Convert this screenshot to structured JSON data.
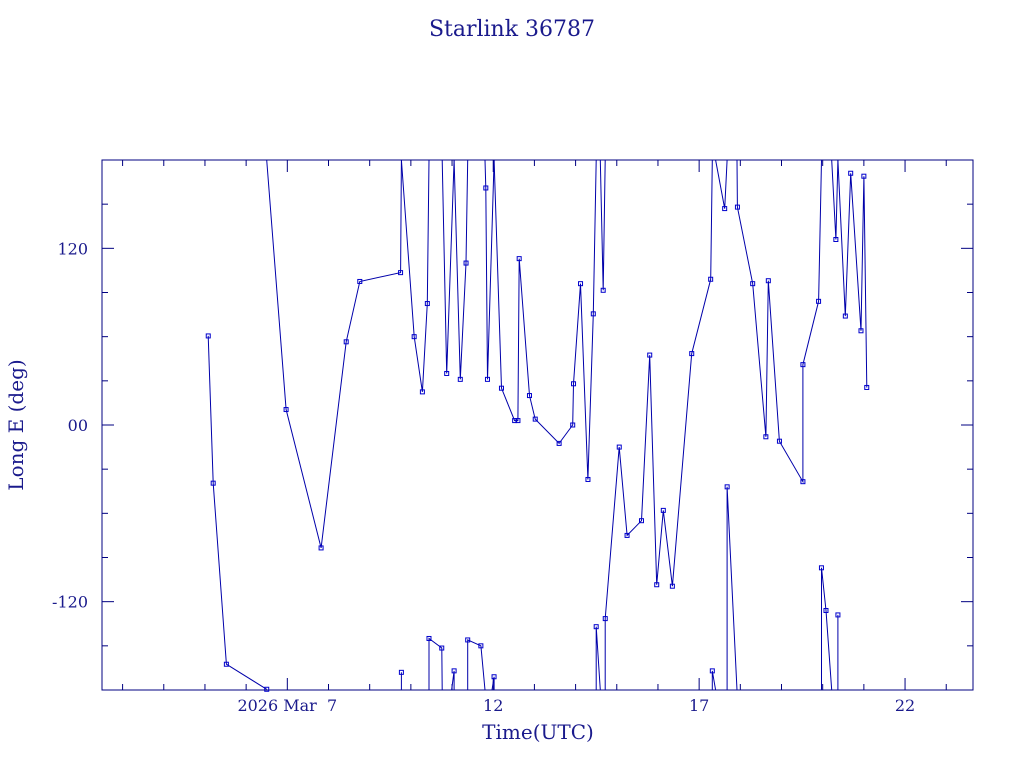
{
  "chart_data": {
    "type": "line",
    "title": "Starlink 36787",
    "xlabel": "Time(UTC)",
    "ylabel": "Long E (deg)",
    "xlim": [
      2.5,
      23.65
    ],
    "ylim": [
      -180,
      180
    ],
    "x_ticks": [
      {
        "value": 7,
        "label": "2026 Mar  7"
      },
      {
        "value": 12,
        "label": "12"
      },
      {
        "value": 17,
        "label": "17"
      },
      {
        "value": 22,
        "label": "22"
      }
    ],
    "y_ticks": [
      {
        "value": -120,
        "label": "-120"
      },
      {
        "value": 0,
        "label": "00"
      },
      {
        "value": 120,
        "label": "120"
      }
    ],
    "y_minor_step": 30,
    "x_minor_step": 1,
    "grid": false,
    "colors": {
      "line": "#0000aa",
      "axes": "#000080",
      "marker": "#0000cc"
    },
    "segments": [
      [
        [
          5.08,
          60.5
        ],
        [
          5.2,
          -39.5
        ],
        [
          5.52,
          -162.5
        ],
        [
          6.5,
          -179.5
        ]
      ],
      [
        [
          6.5,
          180
        ],
        [
          6.97,
          10.5
        ],
        [
          7.82,
          -83.5
        ],
        [
          8.43,
          56.5
        ],
        [
          8.76,
          97.5
        ],
        [
          9.75,
          103.5
        ],
        [
          9.77,
          180
        ]
      ],
      [
        [
          9.77,
          -168
        ],
        [
          9.77,
          -180
        ]
      ],
      [
        [
          9.77,
          180
        ],
        [
          10.08,
          60
        ],
        [
          10.28,
          22.5
        ],
        [
          10.4,
          82.5
        ],
        [
          10.44,
          180
        ]
      ],
      [
        [
          10.44,
          -181
        ],
        [
          10.44,
          -145
        ],
        [
          10.75,
          -151.5
        ],
        [
          10.76,
          -180
        ]
      ],
      [
        [
          10.76,
          180
        ],
        [
          10.87,
          35
        ],
        [
          11.05,
          180
        ]
      ],
      [
        [
          11.05,
          -181
        ],
        [
          11.05,
          -167
        ],
        [
          10.99,
          -180
        ]
      ],
      [
        [
          11.05,
          180
        ],
        [
          11.2,
          31
        ],
        [
          11.34,
          110
        ],
        [
          11.38,
          180
        ]
      ],
      [
        [
          11.38,
          -180
        ],
        [
          11.38,
          -146
        ],
        [
          11.7,
          -150
        ],
        [
          11.8,
          -180
        ]
      ],
      [
        [
          11.8,
          180
        ],
        [
          11.82,
          161
        ],
        [
          11.86,
          31
        ],
        [
          12.02,
          180
        ]
      ],
      [
        [
          12.02,
          -180
        ],
        [
          12.02,
          -171
        ],
        [
          11.97,
          -180
        ]
      ],
      [
        [
          12.02,
          180
        ],
        [
          12.2,
          25
        ],
        [
          12.52,
          3
        ],
        [
          12.6,
          3
        ],
        [
          12.63,
          113
        ],
        [
          12.88,
          20
        ],
        [
          13.02,
          4
        ],
        [
          13.6,
          -12.5
        ],
        [
          13.93,
          0
        ],
        [
          13.95,
          28
        ],
        [
          14.12,
          96
        ],
        [
          14.3,
          -37
        ],
        [
          14.43,
          75.5
        ],
        [
          14.5,
          180
        ]
      ],
      [
        [
          14.5,
          -180
        ],
        [
          14.5,
          -137
        ],
        [
          14.6,
          -180
        ]
      ],
      [
        [
          14.6,
          180
        ],
        [
          14.67,
          91.5
        ],
        [
          14.72,
          180
        ]
      ],
      [
        [
          14.72,
          -181
        ],
        [
          14.72,
          -131.5
        ],
        [
          15.06,
          -15
        ],
        [
          15.25,
          -75
        ],
        [
          15.6,
          -65
        ],
        [
          15.8,
          47.5
        ],
        [
          15.97,
          -108.5
        ],
        [
          16.13,
          -58
        ],
        [
          16.35,
          -109.5
        ],
        [
          16.82,
          48.5
        ],
        [
          17.28,
          99
        ],
        [
          17.32,
          180
        ]
      ],
      [
        [
          17.32,
          -181
        ],
        [
          17.32,
          -167
        ],
        [
          17.4,
          -180
        ]
      ],
      [
        [
          17.4,
          180
        ],
        [
          17.62,
          147
        ],
        [
          17.68,
          180
        ]
      ],
      [
        [
          17.68,
          -180
        ],
        [
          17.68,
          -42
        ],
        [
          17.92,
          -180
        ]
      ],
      [
        [
          17.92,
          180
        ],
        [
          17.93,
          148
        ],
        [
          18.3,
          96
        ],
        [
          18.62,
          -8
        ],
        [
          18.68,
          98
        ],
        [
          18.95,
          -11
        ],
        [
          19.52,
          -38.5
        ],
        [
          19.52,
          41
        ],
        [
          19.9,
          84
        ],
        [
          19.97,
          180
        ]
      ],
      [
        [
          19.97,
          -180
        ],
        [
          19.97,
          -97
        ],
        [
          20.08,
          -126
        ],
        [
          20.22,
          -180
        ]
      ],
      [
        [
          20.22,
          180
        ],
        [
          20.32,
          126
        ],
        [
          20.37,
          180
        ]
      ],
      [
        [
          20.37,
          -180
        ],
        [
          20.37,
          -129
        ],
        [
          20.37,
          -180
        ]
      ],
      [
        [
          20.37,
          180
        ],
        [
          20.55,
          74
        ],
        [
          20.68,
          171
        ],
        [
          20.93,
          64
        ],
        [
          21.0,
          169
        ],
        [
          21.07,
          25.5
        ]
      ]
    ]
  }
}
